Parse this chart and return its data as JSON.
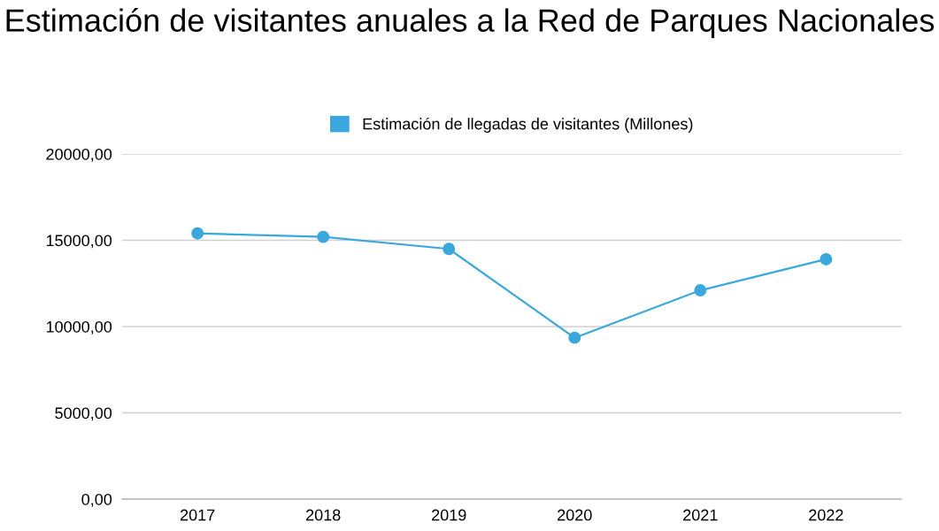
{
  "chart_data": {
    "type": "line",
    "title": "Estimación de visitantes anuales a la Red de Parques Nacionales",
    "categories": [
      "2017",
      "2018",
      "2019",
      "2020",
      "2021",
      "2022"
    ],
    "series": [
      {
        "name": "Estimación de llegadas de visitantes (Millones)",
        "color": "#3aa8dc",
        "values": [
          15400,
          15200,
          14500,
          9350,
          12100,
          13900
        ]
      }
    ],
    "ylim": [
      0,
      20000
    ],
    "yticks": [
      {
        "value": 0,
        "label": "0,00"
      },
      {
        "value": 5000,
        "label": "5000,00"
      },
      {
        "value": 10000,
        "label": "10000,00"
      },
      {
        "value": 15000,
        "label": "15000,00"
      },
      {
        "value": 20000,
        "label": "20000,00"
      }
    ],
    "grid": "y",
    "legend": "top",
    "marker": "circle",
    "line_style": "solid"
  }
}
